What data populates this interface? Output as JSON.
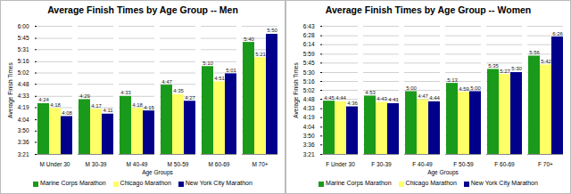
{
  "chart_data": [
    {
      "type": "bar",
      "title": "Average Finish Times by Age Group -- Men",
      "xlabel": "Age Groups",
      "ylabel": "Average Finish Times",
      "categories": [
        "M Under 30",
        "M 30-39",
        "M 40-49",
        "M 50-59",
        "M 60-69",
        "M 70+"
      ],
      "series": [
        {
          "name": "Marine Corps Marathon",
          "color": "#1a9a1a",
          "values": [
            264,
            269,
            273,
            287,
            310,
            340
          ],
          "value_labels": [
            "4:24",
            "4:29",
            "4:33",
            "4:47",
            "5:10",
            "5:40"
          ]
        },
        {
          "name": "Chicago Marathon",
          "color": "#ffff66",
          "values": [
            258,
            257,
            258,
            275,
            291,
            321
          ],
          "value_labels": [
            "4:18",
            "4:17",
            "4:18",
            "4:35",
            "4:51",
            "5:21"
          ]
        },
        {
          "name": "New York City Marathon",
          "color": "#00008b",
          "values": [
            248,
            251,
            255,
            267,
            301,
            350
          ],
          "value_labels": [
            "4:08",
            "4:11",
            "4:15",
            "4:27",
            "5:01",
            "5:50"
          ]
        }
      ],
      "ylim": [
        201,
        360
      ],
      "yticks": [
        {
          "value": 201,
          "label": "3:21"
        },
        {
          "value": 216,
          "label": "3:36"
        },
        {
          "value": 230,
          "label": "3:50"
        },
        {
          "value": 244,
          "label": "4:04"
        },
        {
          "value": 259,
          "label": "4:19"
        },
        {
          "value": 273,
          "label": "4:33"
        },
        {
          "value": 288,
          "label": "4:48"
        },
        {
          "value": 302,
          "label": "5:02"
        },
        {
          "value": 316,
          "label": "5:16"
        },
        {
          "value": 331,
          "label": "5:31"
        },
        {
          "value": 345,
          "label": "5:45"
        },
        {
          "value": 360,
          "label": "6:00"
        }
      ],
      "grid": true,
      "data_labels": true,
      "legend": "bottom"
    },
    {
      "type": "bar",
      "title": "Average Finish Times by Age Group -- Women",
      "xlabel": "Age Groups",
      "ylabel": "Average Finish Times",
      "categories": [
        "F Under 30",
        "F 30-39",
        "F 40-49",
        "F 50-59",
        "F 60-69",
        "F 70+"
      ],
      "series": [
        {
          "name": "Marine Corps Marathon",
          "color": "#1a9a1a",
          "values": [
            285,
            293,
            300,
            313,
            335,
            356
          ],
          "value_labels": [
            "4:45",
            "4:53",
            "5:00",
            "5:13",
            "5:35",
            "5:56"
          ]
        },
        {
          "name": "Chicago Marathon",
          "color": "#ffff66",
          "values": [
            284,
            283,
            287,
            299,
            327,
            342
          ],
          "value_labels": [
            "4:44",
            "4:43",
            "4:47",
            "4:59",
            "5:27",
            "5:42"
          ]
        },
        {
          "name": "New York City Marathon",
          "color": "#00008b",
          "values": [
            276,
            281,
            284,
            300,
            330,
            386
          ],
          "value_labels": [
            "4:36",
            "4:41",
            "4:44",
            "5:00",
            "5:30",
            "6:26"
          ]
        }
      ],
      "ylim": [
        201,
        403
      ],
      "yticks": [
        {
          "value": 201,
          "label": "3:21"
        },
        {
          "value": 216,
          "label": "3:36"
        },
        {
          "value": 230,
          "label": "3:50"
        },
        {
          "value": 244,
          "label": "4:04"
        },
        {
          "value": 259,
          "label": "4:19"
        },
        {
          "value": 273,
          "label": "4:33"
        },
        {
          "value": 288,
          "label": "4:48"
        },
        {
          "value": 302,
          "label": "5:02"
        },
        {
          "value": 316,
          "label": "5:16"
        },
        {
          "value": 330,
          "label": "5:30"
        },
        {
          "value": 345,
          "label": "5:45"
        },
        {
          "value": 359,
          "label": "5:59"
        },
        {
          "value": 374,
          "label": "6:14"
        },
        {
          "value": 388,
          "label": "6:28"
        },
        {
          "value": 403,
          "label": "6:43"
        }
      ],
      "grid": true,
      "data_labels": true,
      "legend": "bottom"
    }
  ]
}
